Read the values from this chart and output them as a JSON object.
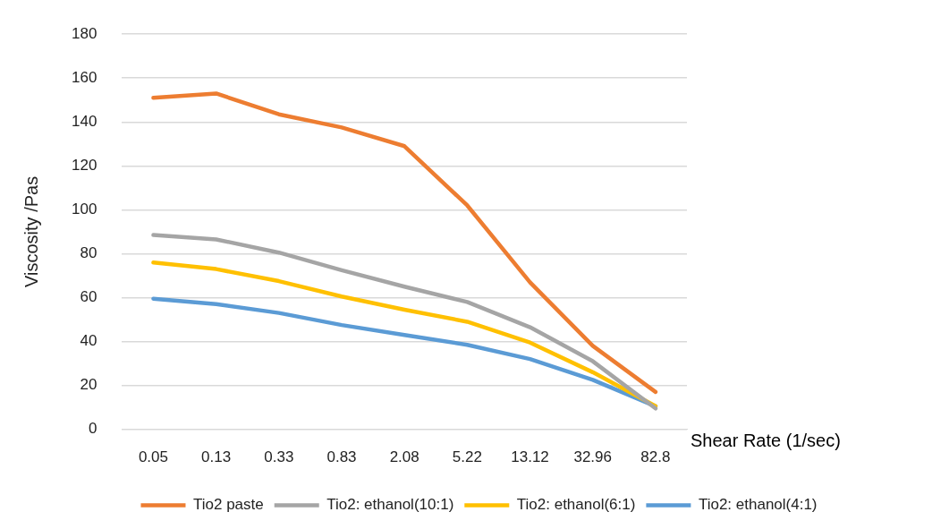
{
  "chart_data": {
    "type": "line",
    "xlabel": "Shear Rate (1/sec)",
    "ylabel": "Viscosity /Pas",
    "categories": [
      "0.05",
      "0.13",
      "0.33",
      "0.83",
      "2.08",
      "5.22",
      "13.12",
      "32.96",
      "82.8"
    ],
    "series": [
      {
        "name": "Tio2 paste",
        "color": "#ed7d31",
        "values": [
          151,
          153,
          143.5,
          137.5,
          129,
          102,
          67,
          38,
          17
        ]
      },
      {
        "name": "Tio2: ethanol(10:1)",
        "color": "#a5a5a5",
        "values": [
          88.5,
          86.5,
          80.5,
          72.5,
          65,
          58,
          46.5,
          31,
          9.5
        ]
      },
      {
        "name": "Tio2: ethanol(6:1)",
        "color": "#ffc000",
        "values": [
          76,
          73,
          67.5,
          60.5,
          54.5,
          49,
          39.5,
          26,
          10.5
        ]
      },
      {
        "name": "Tio2: ethanol(4:1)",
        "color": "#5b9bd5",
        "values": [
          59.5,
          57,
          53,
          47.5,
          43,
          38.5,
          32,
          22.5,
          10.5
        ]
      }
    ],
    "ylim": [
      0,
      180
    ],
    "yticks": [
      0,
      20,
      40,
      60,
      80,
      100,
      120,
      140,
      160,
      180
    ],
    "grid": "y",
    "legend": "bottom",
    "marker": "none",
    "line_style": "solid"
  }
}
